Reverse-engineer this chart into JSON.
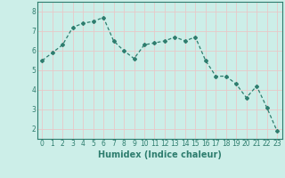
{
  "x": [
    0,
    1,
    2,
    3,
    4,
    5,
    6,
    7,
    8,
    9,
    10,
    11,
    12,
    13,
    14,
    15,
    16,
    17,
    18,
    19,
    20,
    21,
    22,
    23
  ],
  "y": [
    5.5,
    5.9,
    6.3,
    7.2,
    7.4,
    7.5,
    7.7,
    6.5,
    6.0,
    5.6,
    6.3,
    6.4,
    6.5,
    6.7,
    6.5,
    6.7,
    5.5,
    4.7,
    4.7,
    4.3,
    3.6,
    4.2,
    3.1,
    1.9
  ],
  "line_color": "#2e7d6e",
  "marker": "D",
  "markersize": 2.0,
  "linewidth": 0.9,
  "xlabel": "Humidex (Indice chaleur)",
  "xlabel_fontsize": 7,
  "xtick_labels": [
    "0",
    "1",
    "2",
    "3",
    "4",
    "5",
    "6",
    "7",
    "8",
    "9",
    "10",
    "11",
    "12",
    "13",
    "14",
    "15",
    "16",
    "17",
    "18",
    "19",
    "20",
    "21",
    "22",
    "23"
  ],
  "ytick_values": [
    2,
    3,
    4,
    5,
    6,
    7,
    8
  ],
  "ylim": [
    1.5,
    8.5
  ],
  "xlim": [
    -0.5,
    23.5
  ],
  "bg_color": "#cceee8",
  "grid_color": "#e8c8c8",
  "tick_fontsize": 5.5,
  "axis_color": "#2e7d6e",
  "bottom_bar_color": "#2e7d6e"
}
